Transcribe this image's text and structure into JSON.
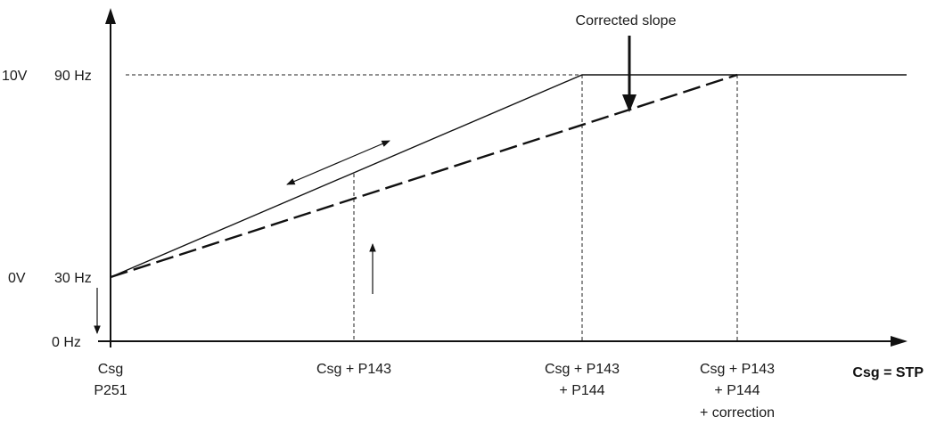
{
  "y_labels": {
    "top_voltage": "10V",
    "top_freq": "90 Hz",
    "low_voltage": "0V",
    "low_freq": "30 Hz",
    "origin_freq": "0 Hz"
  },
  "x_labels": {
    "origin_line1": "Csg",
    "origin_line2": "P251",
    "p143": "Csg + P143",
    "p144_line1": "Csg + P143",
    "p144_line2": "+ P144",
    "corr_line1": "Csg + P143",
    "corr_line2": "+ P144",
    "corr_line3": "+ correction"
  },
  "axis_caption": "Csg = STP",
  "annotation": "Corrected slope"
}
